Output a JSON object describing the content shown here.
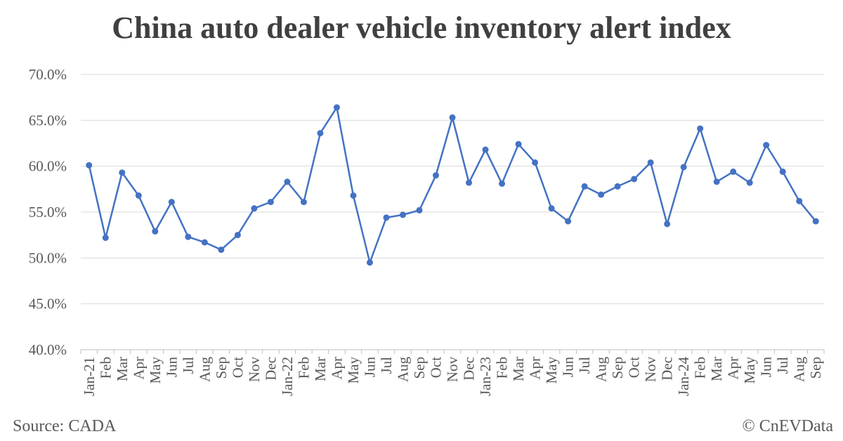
{
  "chart_data": {
    "type": "line",
    "title": "China auto dealer vehicle inventory alert index",
    "xlabel": "",
    "ylabel": "",
    "ylim": [
      40.0,
      70.0
    ],
    "y_ticks": [
      "70.0%",
      "65.0%",
      "60.0%",
      "55.0%",
      "50.0%",
      "45.0%",
      "40.0%"
    ],
    "y_tick_values": [
      70,
      65,
      60,
      55,
      50,
      45,
      40
    ],
    "grid": true,
    "line_color": "#4472C4",
    "categories": [
      "Jan-21",
      "Feb",
      "Mar",
      "Apr",
      "May",
      "Jun",
      "Jul",
      "Aug",
      "Sep",
      "Oct",
      "Nov",
      "Dec",
      "Jan-22",
      "Feb",
      "Mar",
      "Apr",
      "May",
      "Jun",
      "Jul",
      "Aug",
      "Sep",
      "Oct",
      "Nov",
      "Dec",
      "Jan-23",
      "Feb",
      "Mar",
      "Apr",
      "May",
      "Jun",
      "Jul",
      "Aug",
      "Sep",
      "Oct",
      "Nov",
      "Dec",
      "Jan-24",
      "Feb",
      "Mar",
      "Apr",
      "May",
      "Jun",
      "Jul",
      "Aug",
      "Sep"
    ],
    "series": [
      {
        "values": [
          60.1,
          52.2,
          59.3,
          56.8,
          52.9,
          56.1,
          52.3,
          51.7,
          50.9,
          52.5,
          55.4,
          56.1,
          58.3,
          56.1,
          63.6,
          66.4,
          56.8,
          49.5,
          54.4,
          54.7,
          55.2,
          59.0,
          65.3,
          58.2,
          61.8,
          58.1,
          62.4,
          60.4,
          55.4,
          54.0,
          57.8,
          56.9,
          57.8,
          58.6,
          60.4,
          53.7,
          59.9,
          64.1,
          58.3,
          59.4,
          58.2,
          62.3,
          59.4,
          56.2,
          54.0
        ]
      }
    ]
  },
  "footer": {
    "source": "Source: CADA",
    "copyright": "© CnEVData"
  }
}
